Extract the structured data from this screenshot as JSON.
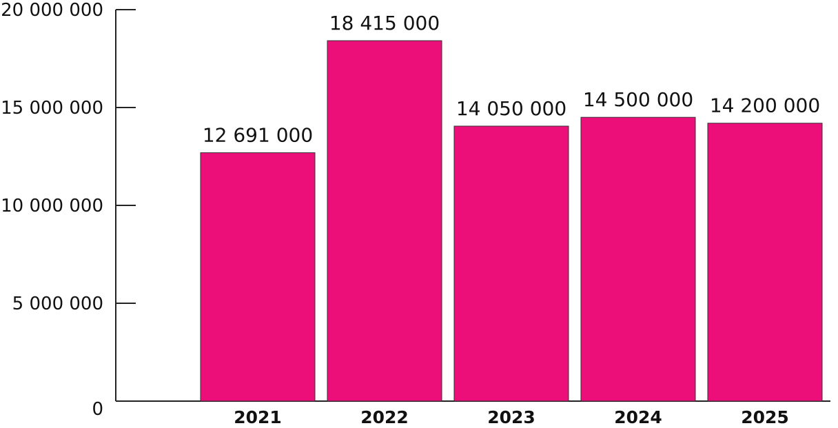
{
  "chart_data": {
    "type": "bar",
    "title": "",
    "xlabel": "",
    "ylabel": "",
    "categories": [
      "2021",
      "2022",
      "2023",
      "2024",
      "2025"
    ],
    "values": [
      12691000,
      18415000,
      14050000,
      14500000,
      14200000
    ],
    "data_labels": [
      "12 691 000",
      "18 415 000",
      "14 050 000",
      "14 500 000",
      "14 200 000"
    ],
    "ylim": [
      0,
      20000000
    ],
    "y_ticks": [
      0,
      5000000,
      10000000,
      15000000,
      20000000
    ],
    "y_tick_labels": [
      "0",
      "5 000 000",
      "10 000 000",
      "15 000 000",
      "20 000 000"
    ],
    "bar_color": "#ec0f7a",
    "axis_color": "#222222",
    "grid": false,
    "legend": "none"
  }
}
